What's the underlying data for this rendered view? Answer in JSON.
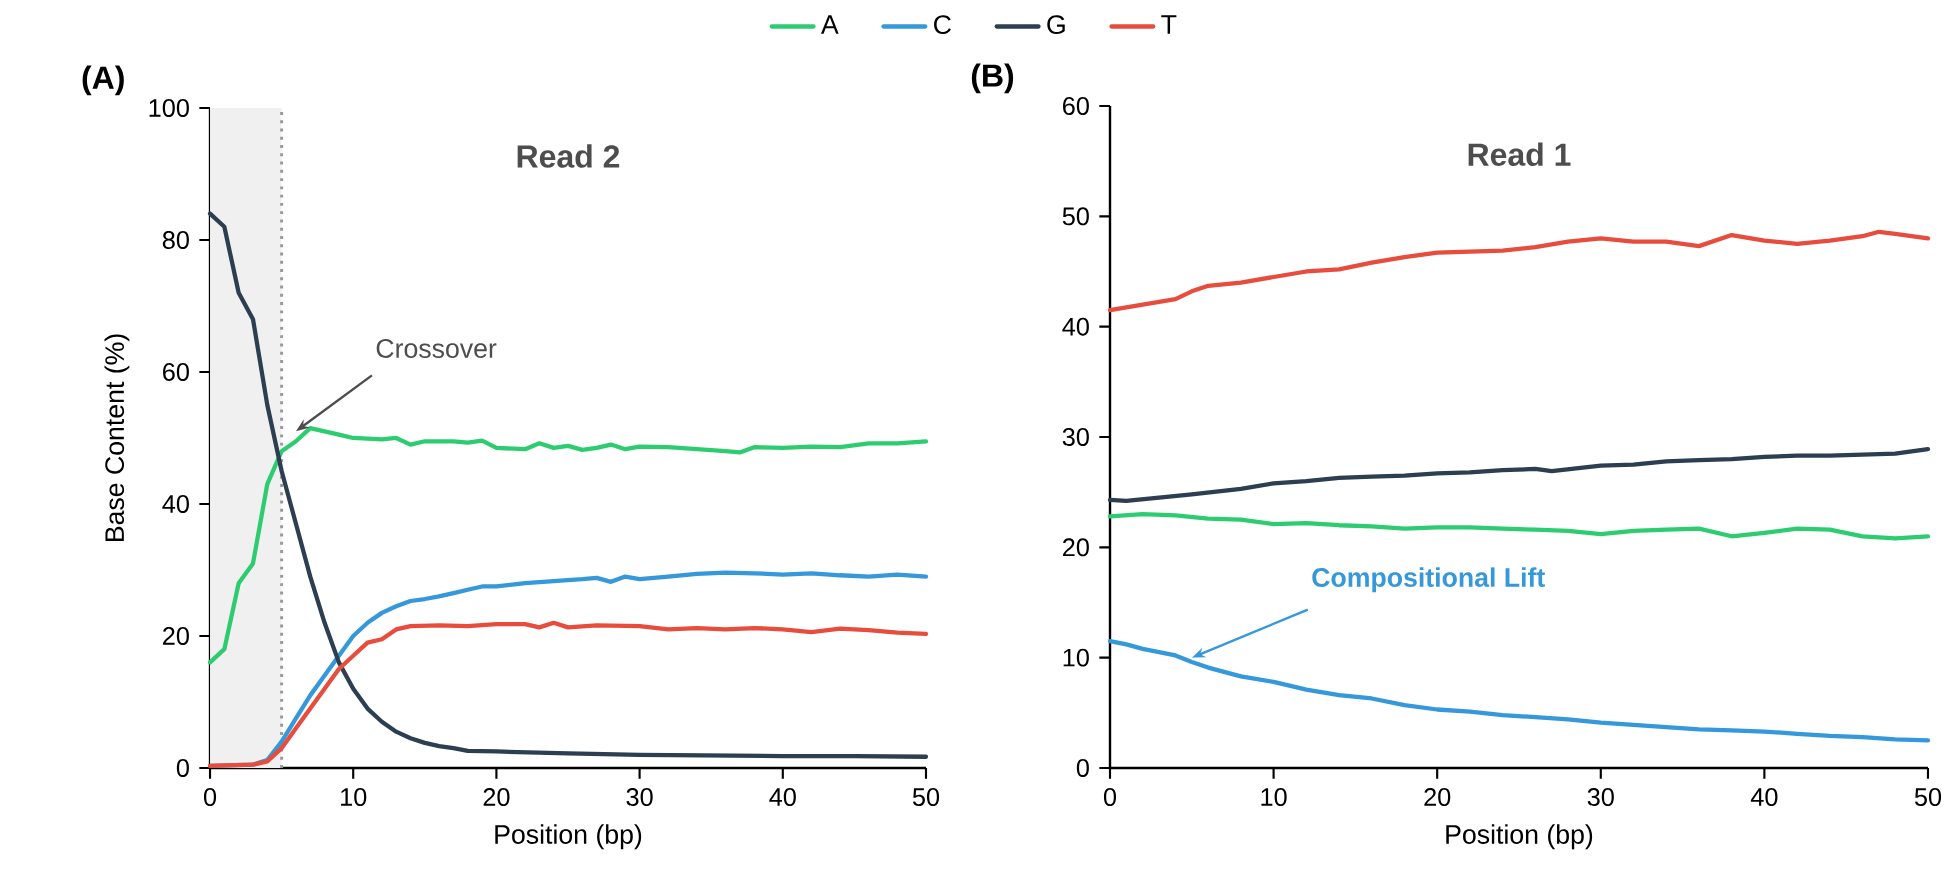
{
  "chart_data": [
    {
      "type": "line",
      "title": "Read 2",
      "xlabel": "Position (bp)",
      "ylabel": "Base Content (%)",
      "xlim": [
        0,
        50
      ],
      "ylim": [
        0,
        100
      ],
      "xticks": [
        0,
        10,
        20,
        30,
        40,
        50
      ],
      "yticks": [
        0,
        20,
        40,
        60,
        80,
        100
      ],
      "legend": "top",
      "bands": [
        {
          "axis": "x",
          "from": 0,
          "to": 5,
          "color": "#f0f0f0"
        }
      ],
      "ref_lines": [
        {
          "axis": "x",
          "value": 5,
          "color": "#999999",
          "line_style": "dotted"
        }
      ],
      "annotations": [
        "(A)",
        {
          "text": "Crossover",
          "x": 6,
          "y": 51
        }
      ],
      "series": [
        {
          "name": "A",
          "color": "#2ecc71",
          "x": [
            0,
            1,
            2,
            3,
            4,
            5,
            6,
            7,
            8,
            9,
            10,
            12,
            13,
            14,
            15,
            17,
            18,
            19,
            20,
            22,
            23,
            24,
            25,
            26,
            27,
            28,
            29,
            30,
            32,
            34,
            36,
            37,
            38,
            40,
            42,
            44,
            46,
            48,
            50
          ],
          "values": [
            16,
            18,
            28,
            31,
            43,
            48,
            49.5,
            51.5,
            51,
            50.5,
            50,
            49.8,
            50,
            49,
            49.5,
            49.5,
            49.3,
            49.6,
            48.5,
            48.3,
            49.2,
            48.5,
            48.8,
            48.2,
            48.5,
            49,
            48.3,
            48.7,
            48.6,
            48.3,
            48,
            47.8,
            48.6,
            48.5,
            48.7,
            48.6,
            49.2,
            49.2,
            49.5
          ]
        },
        {
          "name": "C",
          "color": "#3498db",
          "x": [
            0,
            3,
            4,
            5,
            6,
            7,
            8,
            9,
            10,
            11,
            12,
            13,
            14,
            15,
            16,
            17,
            18,
            19,
            20,
            22,
            24,
            26,
            27,
            28,
            29,
            30,
            32,
            34,
            36,
            38,
            40,
            42,
            44,
            46,
            48,
            50
          ],
          "values": [
            0.3,
            0.5,
            1.2,
            4,
            7.5,
            11,
            14,
            17,
            20,
            22,
            23.5,
            24.5,
            25.3,
            25.6,
            26,
            26.5,
            27,
            27.5,
            27.5,
            28,
            28.3,
            28.6,
            28.8,
            28.2,
            29,
            28.6,
            29,
            29.4,
            29.6,
            29.5,
            29.3,
            29.5,
            29.2,
            29,
            29.3,
            29
          ]
        },
        {
          "name": "G",
          "color": "#2c3e50",
          "x": [
            0,
            1,
            2,
            3,
            4,
            5,
            6,
            7,
            8,
            9,
            10,
            11,
            12,
            13,
            14,
            15,
            16,
            17,
            18,
            20,
            25,
            30,
            35,
            40,
            45,
            50
          ],
          "values": [
            84,
            82,
            72,
            68,
            55,
            45,
            37,
            29,
            22,
            16,
            12,
            9,
            7,
            5.5,
            4.5,
            3.8,
            3.3,
            3,
            2.6,
            2.5,
            2.2,
            2,
            1.9,
            1.8,
            1.8,
            1.7
          ]
        },
        {
          "name": "T",
          "color": "#e74c3c",
          "x": [
            0,
            3,
            4,
            5,
            6,
            7,
            8,
            9,
            10,
            11,
            12,
            13,
            14,
            16,
            18,
            20,
            22,
            23,
            24,
            25,
            27,
            30,
            32,
            34,
            36,
            38,
            40,
            42,
            44,
            46,
            48,
            50
          ],
          "values": [
            0.3,
            0.5,
            1,
            3,
            6,
            9,
            12,
            15,
            17,
            19,
            19.5,
            21,
            21.5,
            21.6,
            21.5,
            21.8,
            21.8,
            21.3,
            22,
            21.3,
            21.6,
            21.5,
            21,
            21.2,
            21,
            21.2,
            21,
            20.6,
            21.1,
            20.9,
            20.5,
            20.3
          ]
        }
      ]
    },
    {
      "type": "line",
      "title": "Read 1",
      "xlabel": "Position (bp)",
      "xlim": [
        0,
        50
      ],
      "ylim": [
        0,
        60
      ],
      "xticks": [
        0,
        10,
        20,
        30,
        40,
        50
      ],
      "yticks": [
        0,
        10,
        20,
        30,
        40,
        50,
        60
      ],
      "annotations": [
        "(B)",
        {
          "text": "Compositional Lift",
          "x": 5,
          "y": 10
        }
      ],
      "series": [
        {
          "color": "#2ecc71",
          "x": [
            0,
            2,
            4,
            6,
            8,
            10,
            12,
            14,
            16,
            18,
            20,
            22,
            24,
            26,
            28,
            30,
            32,
            34,
            36,
            38,
            40,
            42,
            44,
            46,
            48,
            50
          ],
          "values": [
            22.8,
            23,
            22.9,
            22.6,
            22.5,
            22.1,
            22.2,
            22,
            21.9,
            21.7,
            21.8,
            21.8,
            21.7,
            21.6,
            21.5,
            21.2,
            21.5,
            21.6,
            21.7,
            21,
            21.3,
            21.7,
            21.6,
            21,
            20.8,
            21
          ]
        },
        {
          "color": "#3498db",
          "x": [
            0,
            1,
            2,
            4,
            5,
            6,
            8,
            10,
            12,
            14,
            16,
            18,
            20,
            22,
            24,
            26,
            28,
            30,
            32,
            34,
            36,
            38,
            40,
            42,
            44,
            46,
            48,
            50
          ],
          "values": [
            11.5,
            11.2,
            10.8,
            10.2,
            9.6,
            9.1,
            8.3,
            7.8,
            7.1,
            6.6,
            6.3,
            5.7,
            5.3,
            5.1,
            4.8,
            4.6,
            4.4,
            4.1,
            3.9,
            3.7,
            3.5,
            3.4,
            3.3,
            3.1,
            2.9,
            2.8,
            2.6,
            2.5
          ]
        },
        {
          "color": "#2c3e50",
          "x": [
            0,
            1,
            3,
            5,
            8,
            10,
            12,
            14,
            16,
            18,
            20,
            22,
            24,
            26,
            27,
            30,
            32,
            34,
            36,
            38,
            40,
            42,
            44,
            46,
            48,
            50
          ],
          "values": [
            24.3,
            24.2,
            24.5,
            24.8,
            25.3,
            25.8,
            26,
            26.3,
            26.4,
            26.5,
            26.7,
            26.8,
            27,
            27.1,
            26.9,
            27.4,
            27.5,
            27.8,
            27.9,
            28,
            28.2,
            28.3,
            28.3,
            28.4,
            28.5,
            28.9
          ]
        },
        {
          "color": "#e74c3c",
          "x": [
            0,
            2,
            4,
            5,
            6,
            8,
            10,
            12,
            14,
            16,
            18,
            20,
            22,
            24,
            26,
            28,
            30,
            32,
            34,
            36,
            38,
            40,
            42,
            44,
            46,
            47,
            48,
            50
          ],
          "values": [
            41.5,
            42,
            42.5,
            43.2,
            43.7,
            44,
            44.5,
            45,
            45.2,
            45.8,
            46.3,
            46.7,
            46.8,
            46.9,
            47.2,
            47.7,
            48,
            47.7,
            47.7,
            47.3,
            48.3,
            47.8,
            47.5,
            47.8,
            48.2,
            48.6,
            48.4,
            48
          ]
        }
      ]
    }
  ]
}
